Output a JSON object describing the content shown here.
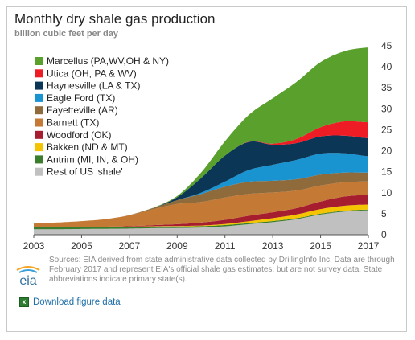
{
  "header": {
    "title": "Monthly dry shale gas production",
    "subtitle": "billion cubic feet per day"
  },
  "source_note": "Sources: EIA derived from state administrative data collected by DrillingInfo Inc. Data are through February 2017  and represent EIA's official shale gas estimates, but are not survey data. State abbreviations indicate primary state(s).",
  "logo": {
    "text": "eia",
    "icon": "eia-logo-icon"
  },
  "download": {
    "label": "Download figure data",
    "icon": "excel-icon"
  },
  "chart_data": {
    "type": "area",
    "stacked": true,
    "title": "Monthly dry shale gas production",
    "ylabel": "billion cubic feet per day",
    "x": [
      2003,
      2004,
      2005,
      2006,
      2007,
      2008,
      2009,
      2010,
      2011,
      2012,
      2013,
      2014,
      2015,
      2016,
      2017
    ],
    "xticks": [
      "2003",
      "2005",
      "2007",
      "2009",
      "2011",
      "2013",
      "2015",
      "2017"
    ],
    "yticks": [
      "0",
      "5",
      "10",
      "15",
      "20",
      "25",
      "30",
      "35",
      "40",
      "45"
    ],
    "ylim": [
      0,
      45
    ],
    "y_axis_side": "right",
    "grid": false,
    "legend_position": "top-left",
    "series": [
      {
        "name": "Rest of US 'shale'",
        "color": "#c0c0c0",
        "values": [
          1.3,
          1.3,
          1.35,
          1.4,
          1.45,
          1.55,
          1.6,
          1.7,
          2.0,
          2.5,
          3.0,
          3.7,
          4.8,
          5.5,
          5.8
        ]
      },
      {
        "name": "Antrim (MI, IN, & OH)",
        "color": "#3a7d2c",
        "values": [
          0.45,
          0.44,
          0.43,
          0.42,
          0.41,
          0.4,
          0.37,
          0.34,
          0.3,
          0.27,
          0.25,
          0.23,
          0.21,
          0.2,
          0.19
        ]
      },
      {
        "name": "Bakken (ND & MT)",
        "color": "#f5c400",
        "values": [
          0.02,
          0.02,
          0.03,
          0.04,
          0.05,
          0.07,
          0.1,
          0.15,
          0.25,
          0.45,
          0.7,
          0.9,
          1.1,
          1.2,
          1.2
        ]
      },
      {
        "name": "Woodford (OK)",
        "color": "#a61d30",
        "values": [
          0.0,
          0.0,
          0.02,
          0.05,
          0.12,
          0.25,
          0.45,
          0.7,
          1.0,
          1.3,
          1.4,
          1.5,
          1.8,
          2.2,
          2.3
        ]
      },
      {
        "name": "Barnett (TX)",
        "color": "#c47a34",
        "values": [
          0.9,
          1.15,
          1.4,
          1.8,
          2.6,
          3.8,
          4.8,
          4.9,
          5.3,
          5.2,
          4.7,
          4.2,
          3.8,
          3.4,
          3.2
        ]
      },
      {
        "name": "Fayetteville (AR)",
        "color": "#8f6a3a",
        "values": [
          0.0,
          0.0,
          0.0,
          0.0,
          0.05,
          0.3,
          0.9,
          1.9,
          2.6,
          2.9,
          2.8,
          2.7,
          2.6,
          2.3,
          2.1
        ]
      },
      {
        "name": "Eagle Ford (TX)",
        "color": "#1a93d1",
        "values": [
          0.0,
          0.0,
          0.0,
          0.0,
          0.0,
          0.0,
          0.0,
          0.3,
          1.2,
          2.8,
          3.8,
          4.6,
          5.0,
          4.6,
          3.9
        ]
      },
      {
        "name": "Haynesville (LA & TX)",
        "color": "#0b3656",
        "values": [
          0.0,
          0.0,
          0.0,
          0.0,
          0.0,
          0.0,
          0.7,
          3.5,
          6.2,
          6.7,
          4.8,
          4.0,
          4.1,
          4.2,
          4.3
        ]
      },
      {
        "name": "Utica (OH, PA & WV)",
        "color": "#ee1c24",
        "values": [
          0.0,
          0.0,
          0.0,
          0.0,
          0.0,
          0.0,
          0.0,
          0.0,
          0.0,
          0.05,
          0.25,
          1.0,
          2.2,
          3.4,
          3.8
        ]
      },
      {
        "name": "Marcellus (PA,WV,OH & NY)",
        "color": "#5aa02c",
        "values": [
          0.0,
          0.0,
          0.0,
          0.0,
          0.0,
          0.05,
          0.3,
          1.3,
          3.4,
          6.4,
          10.8,
          13.6,
          15.5,
          16.7,
          17.8
        ]
      }
    ]
  }
}
